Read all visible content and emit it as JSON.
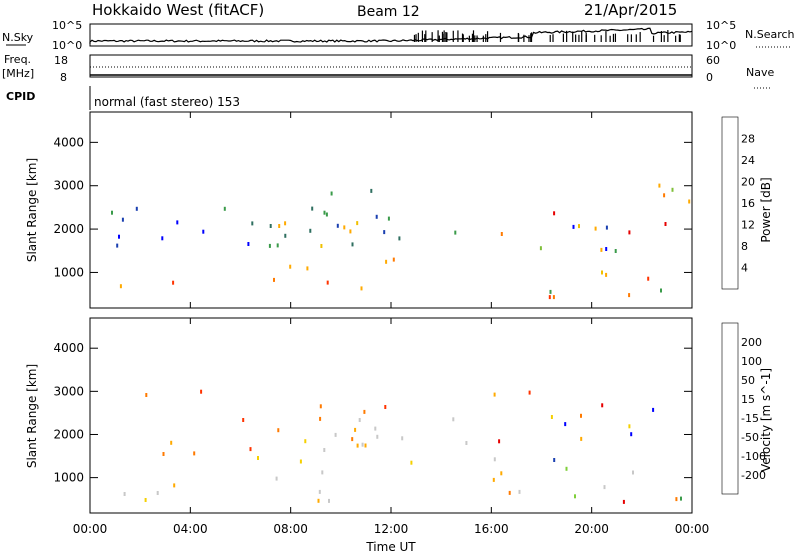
{
  "header": {
    "station": "Hokkaido West (fitACF)",
    "beam": "Beam 12",
    "date": "21/Apr/2015"
  },
  "panels": {
    "nsky": {
      "label": "N.Sky",
      "ticks": [
        "10^5",
        "10^0"
      ],
      "right_label": "N.Search",
      "right_ticks": [
        "10^5",
        "10^0"
      ]
    },
    "freq": {
      "label_top": "Freq.",
      "label_bottom": "[MHz]",
      "ticks": [
        "18",
        "8"
      ],
      "right_label": "Nave",
      "right_ticks": [
        "60",
        "0"
      ]
    },
    "cpid": {
      "label": "CPID",
      "value": "normal (fast stereo) 153"
    }
  },
  "colors": {
    "power": [
      "#0000ff",
      "#1a3fb0",
      "#2f6f60",
      "#3a9b4a",
      "#7fbf3a",
      "#f0c000",
      "#ffaa00",
      "#ff7a00",
      "#ff3300",
      "#e60000"
    ],
    "velocity": [
      "#0000ff",
      "#1a3fb0",
      "#3a9b4a",
      "#7fcf3a",
      "#c8c8c8",
      "#f5d000",
      "#ffaa00",
      "#ff7a00",
      "#ff3300",
      "#e60000"
    ]
  },
  "chart_data": [
    {
      "type": "heatmap",
      "title": "Power",
      "xlabel": "Time UT",
      "ylabel": "Slant Range [km]",
      "x_ticks": [
        "00:00",
        "04:00",
        "08:00",
        "12:00",
        "16:00",
        "20:00",
        "00:00"
      ],
      "xlim_hours": [
        0,
        24
      ],
      "ylim": [
        180,
        4700
      ],
      "y_ticks": [
        1000,
        2000,
        3000,
        4000
      ],
      "colorbar": {
        "label": "Power [dB]",
        "ticks": [
          "4",
          "8",
          "12",
          "16",
          "20",
          "24",
          "28"
        ],
        "range": [
          0,
          30
        ]
      },
      "regions": [
        {
          "t": [
            0,
            9.5
          ],
          "r": [
            700,
            1250
          ],
          "level": "high"
        },
        {
          "t": [
            9.5,
            12.5
          ],
          "r": [
            650,
            1500
          ],
          "level": "high"
        },
        {
          "t": [
            4,
            11.5
          ],
          "r": [
            1400,
            2300
          ],
          "level": "medium"
        },
        {
          "t": [
            0.5,
            15
          ],
          "r": [
            1500,
            3100
          ],
          "level": "low"
        },
        {
          "t": [
            16,
            24
          ],
          "r": [
            400,
            3100
          ],
          "level": "mixed"
        }
      ]
    },
    {
      "type": "heatmap",
      "title": "Velocity",
      "xlabel": "Time UT",
      "ylabel": "Slant Range [km]",
      "x_ticks": [
        "00:00",
        "04:00",
        "08:00",
        "12:00",
        "16:00",
        "20:00",
        "00:00"
      ],
      "xlim_hours": [
        0,
        24
      ],
      "ylim": [
        180,
        4700
      ],
      "y_ticks": [
        1000,
        2000,
        3000,
        4000
      ],
      "colorbar": {
        "label": "Velocity [m s^-1]",
        "ticks": [
          "200",
          "100",
          "50",
          "15",
          "-15",
          "-50",
          "-100",
          "-200"
        ],
        "range": [
          -250,
          250
        ]
      },
      "regions": [
        {
          "t": [
            0,
            12
          ],
          "r": [
            500,
            1200
          ],
          "level": "ground-scatter"
        },
        {
          "t": [
            7,
            15
          ],
          "r": [
            1200,
            2400
          ],
          "level": "ground-scatter"
        },
        {
          "t": [
            2,
            12
          ],
          "r": [
            1500,
            3100
          ],
          "level": "negative"
        },
        {
          "t": [
            16,
            24
          ],
          "r": [
            400,
            3100
          ],
          "level": "mixed"
        }
      ]
    }
  ]
}
